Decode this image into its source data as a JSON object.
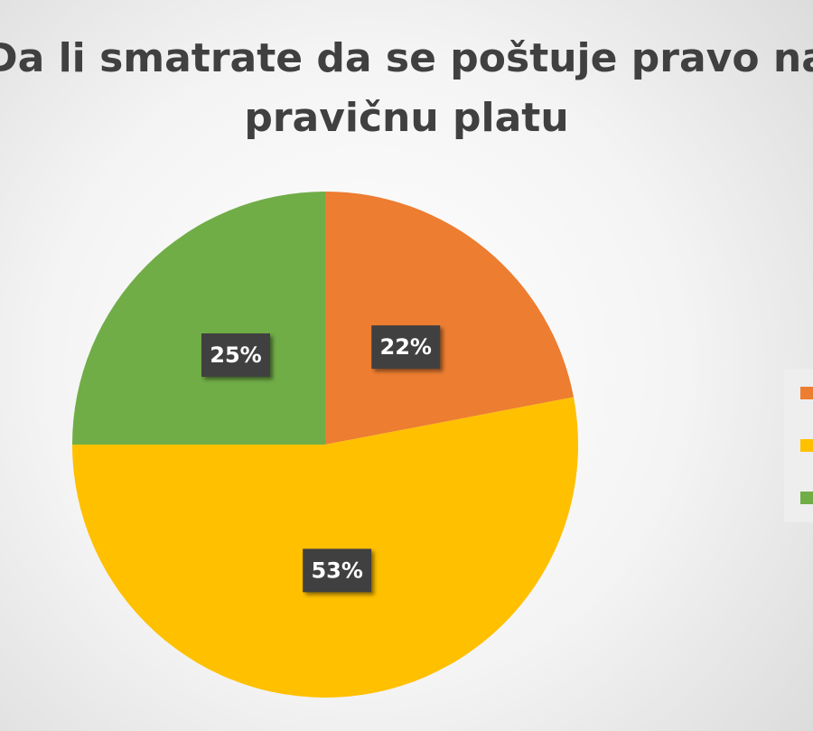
{
  "chart_data": {
    "type": "pie",
    "title": "Da li smatrate da se poštuje pravo na pravičnu platu",
    "categories": [
      null,
      null,
      null
    ],
    "values": [
      22,
      53,
      25
    ],
    "value_labels": [
      "22%",
      "53%",
      "25%"
    ],
    "colors": [
      "#ed7d31",
      "#ffc000",
      "#70ad47"
    ],
    "legend": "right"
  }
}
